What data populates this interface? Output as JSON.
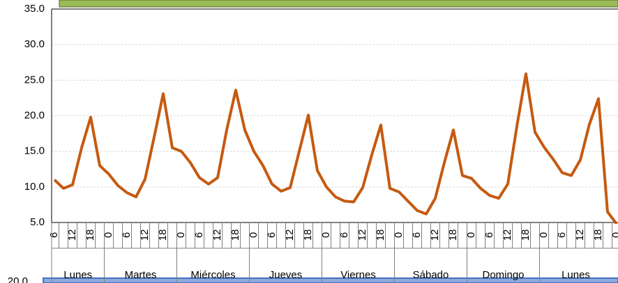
{
  "chart_data": {
    "type": "line",
    "categories": [
      "6",
      null,
      "12",
      null,
      "18",
      null,
      "0",
      null,
      "6",
      null,
      "12",
      null,
      "18",
      null,
      "0",
      null,
      "6",
      null,
      "12",
      null,
      "18",
      null,
      "0",
      null,
      "6",
      null,
      "12",
      null,
      "18",
      null,
      "0",
      null,
      "6",
      null,
      "12",
      null,
      "18",
      null,
      "0",
      null,
      "6",
      null,
      "12",
      null,
      "18",
      null,
      "0",
      null,
      "6",
      null,
      "12",
      null,
      "18",
      null,
      "0",
      null,
      "6",
      null,
      "12",
      null,
      "18",
      null,
      "0"
    ],
    "day_labels": [
      "Lunes",
      "Martes",
      "Miércoles",
      "Jueves",
      "Viernes",
      "Sábado",
      "Domingo",
      "Lunes"
    ],
    "series": [
      {
        "color": "#c55a11",
        "values": [
          11.0,
          9.8,
          10.3,
          15.5,
          19.8,
          13.0,
          11.8,
          10.2,
          9.2,
          8.6,
          11.1,
          17.0,
          23.1,
          15.5,
          15.0,
          13.4,
          11.3,
          10.4,
          11.3,
          18.0,
          23.6,
          18.0,
          15.0,
          13.0,
          10.4,
          9.4,
          9.9,
          15.0,
          20.1,
          12.3,
          10.0,
          8.6,
          8.0,
          7.9,
          9.9,
          14.5,
          18.7,
          9.8,
          9.3,
          8.0,
          6.7,
          6.2,
          8.4,
          13.4,
          18.0,
          11.6,
          11.2,
          9.8,
          8.8,
          8.4,
          10.4,
          18.5,
          25.9,
          17.7,
          15.6,
          13.9,
          12.0,
          11.6,
          13.8,
          18.8,
          22.4,
          6.5,
          4.8
        ]
      }
    ],
    "ylim": [
      5,
      35
    ],
    "yticks": [
      {
        "value": 5,
        "label": "5.0"
      },
      {
        "value": 10,
        "label": "10.0"
      },
      {
        "value": 15,
        "label": "15.0"
      },
      {
        "value": 20,
        "label": "20.0"
      },
      {
        "value": 25,
        "label": "25.0"
      },
      {
        "value": 30,
        "label": "30.0"
      },
      {
        "value": 35,
        "label": "35.0"
      }
    ],
    "grid": true
  },
  "lower_chart": {
    "ytick_label": "20.0"
  }
}
